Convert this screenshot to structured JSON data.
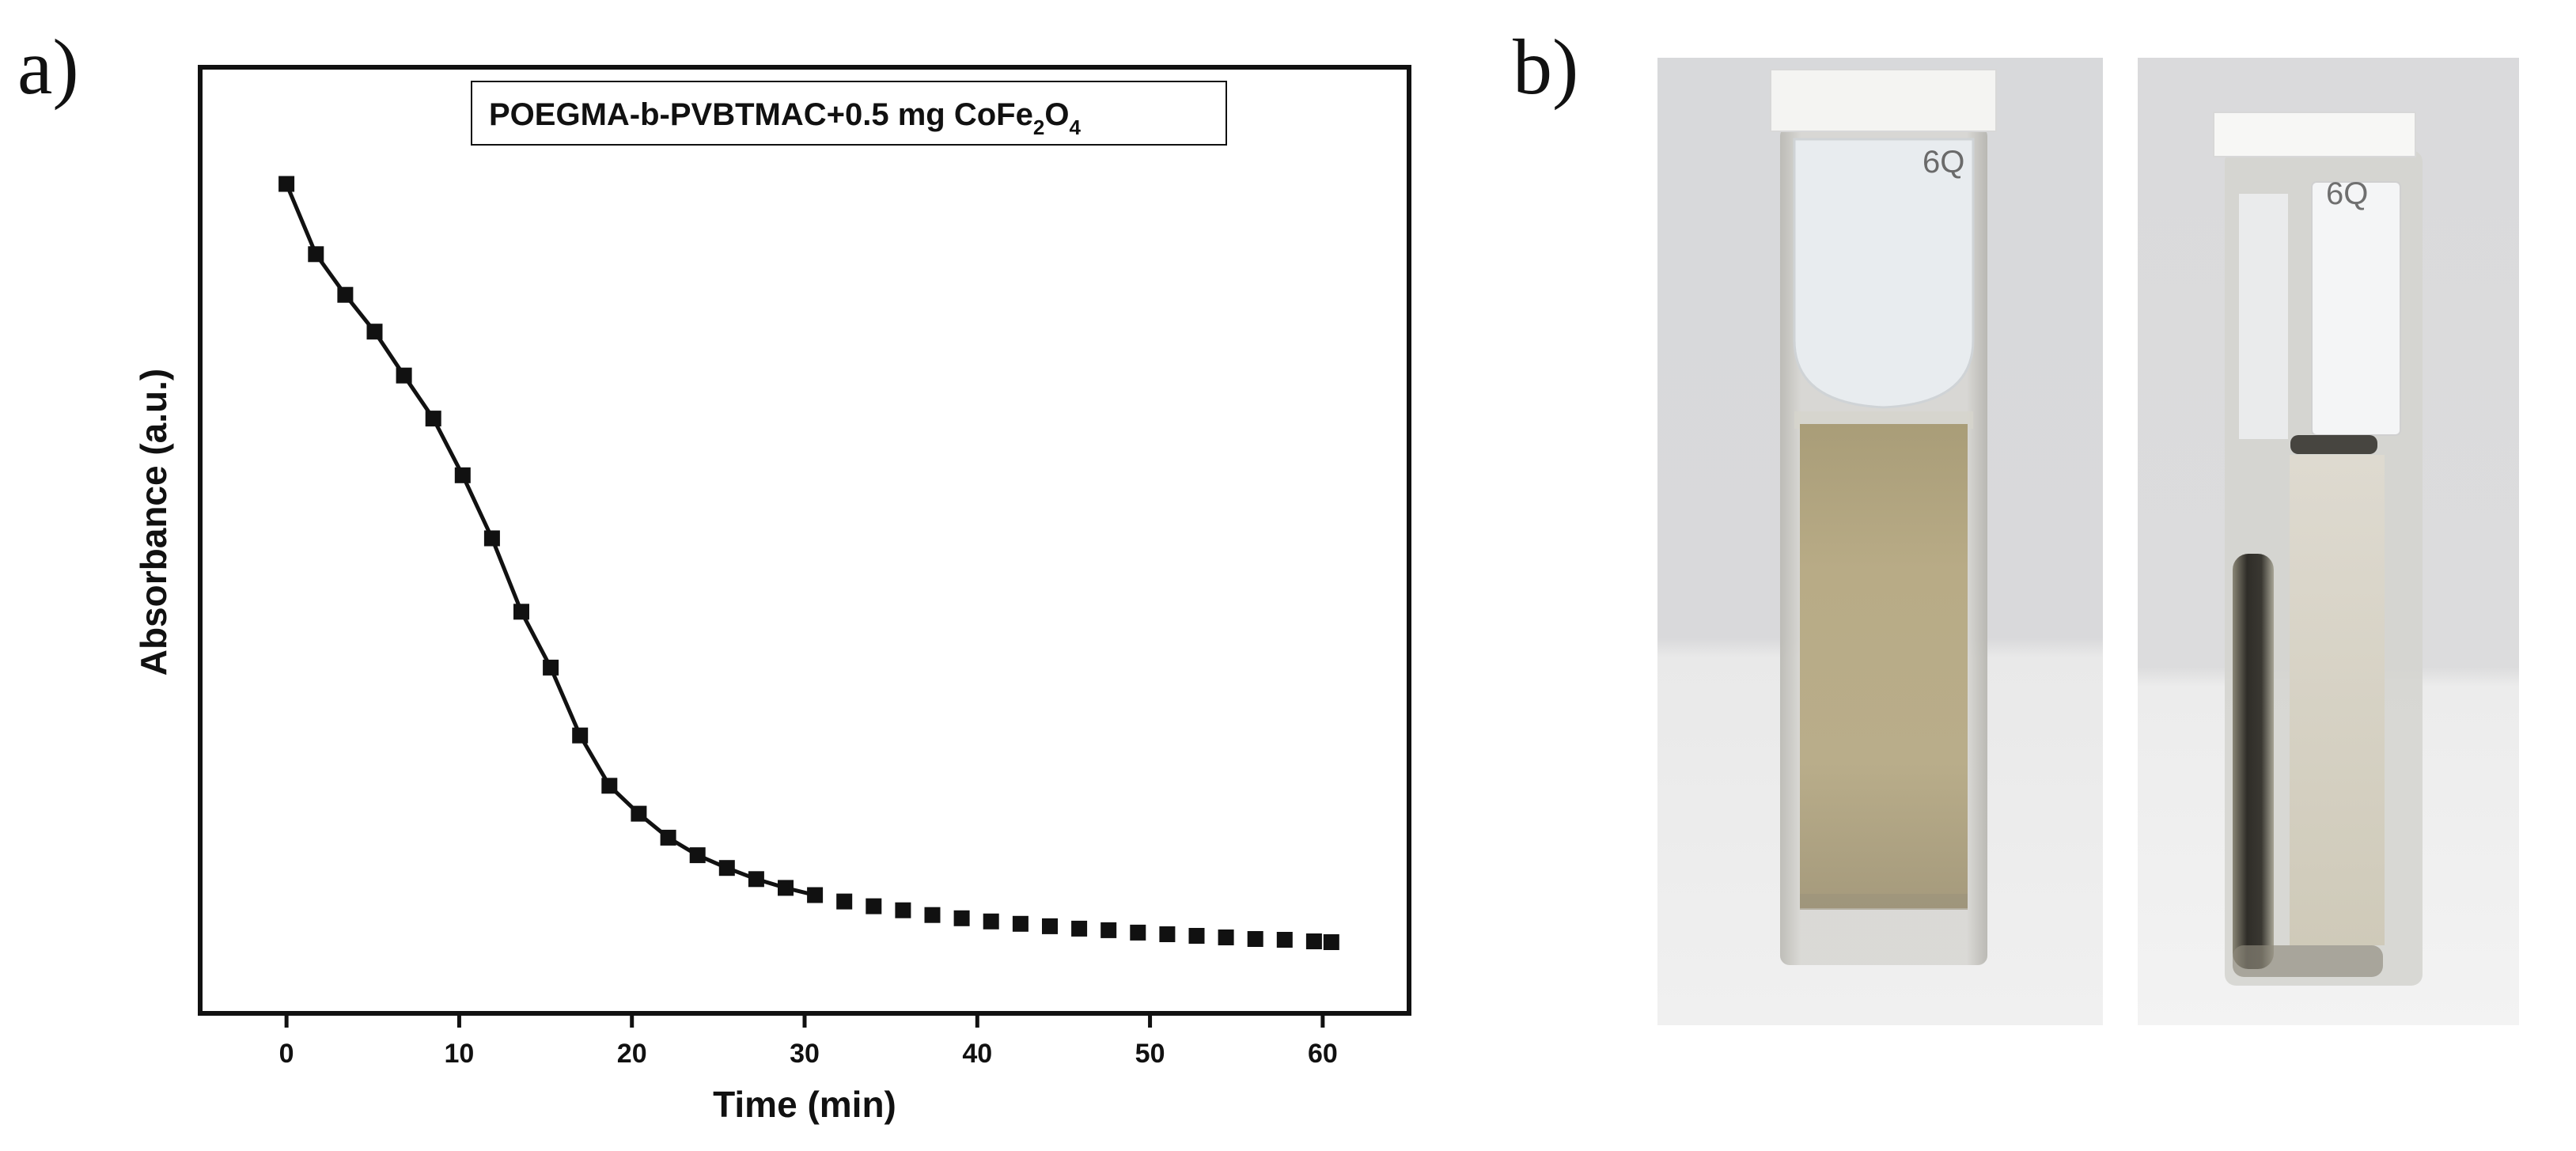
{
  "panels": {
    "a_label": "a)",
    "b_label": "b)"
  },
  "chart_data": {
    "type": "line",
    "title": "",
    "legend": {
      "text_parts": [
        "POEGMA-b-PVBTMAC+0.5 mg CoFe",
        "2",
        "O",
        "4"
      ],
      "position": "top-right"
    },
    "xlabel": "Time (min)",
    "ylabel": "Absorbance (a.u.)",
    "xlim": [
      -5,
      65
    ],
    "ylim": [
      0,
      1
    ],
    "xticks": [
      0,
      10,
      20,
      30,
      40,
      50,
      60
    ],
    "yticks": [],
    "grid": false,
    "marker": "square",
    "series": [
      {
        "name": "POEGMA-b-PVBTMAC+0.5 mg CoFe2O4",
        "color": "#111111",
        "x": [
          0,
          1.7,
          3.4,
          5.1,
          6.8,
          8.5,
          10.2,
          11.9,
          13.6,
          15.3,
          17.0,
          18.7,
          20.4,
          22.1,
          23.8,
          25.5,
          27.2,
          28.9,
          30.6,
          32.3,
          34.0,
          35.7,
          37.4,
          39.1,
          40.8,
          42.5,
          44.2,
          45.9,
          47.6,
          49.3,
          51.0,
          52.7,
          54.4,
          56.1,
          57.8,
          59.5,
          60.5
        ],
        "y": [
          0.945,
          0.857,
          0.806,
          0.76,
          0.705,
          0.651,
          0.58,
          0.501,
          0.409,
          0.339,
          0.254,
          0.191,
          0.156,
          0.126,
          0.104,
          0.088,
          0.074,
          0.063,
          0.054,
          0.046,
          0.04,
          0.035,
          0.029,
          0.025,
          0.021,
          0.018,
          0.015,
          0.012,
          0.01,
          0.007,
          0.005,
          0.003,
          0.001,
          -0.001,
          -0.002,
          -0.004,
          -0.005
        ],
        "line_until_x": 30.6
      }
    ]
  },
  "photos": {
    "left": {
      "cuvette_text": "6Q",
      "colors": {
        "background": "#dcdcdc",
        "liquid": "#b8ab86",
        "glass": "#cfcfcd"
      }
    },
    "right": {
      "cuvette_text": "6Q",
      "colors": {
        "background": "#dedede",
        "liquid": "#d6d1c1",
        "deposit": "#2b2a26",
        "glass": "#d3d2cf"
      }
    }
  }
}
